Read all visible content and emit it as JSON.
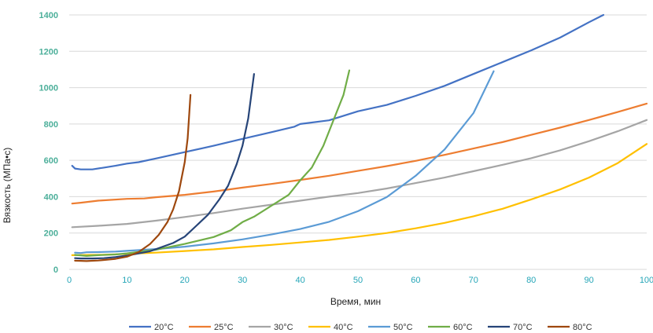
{
  "chart_data": {
    "type": "line",
    "title": "",
    "xlabel": "Время, мин",
    "ylabel": "Вязкость (МПа•с)",
    "xlim": [
      0,
      100
    ],
    "ylim": [
      0,
      1400
    ],
    "xticks": [
      0,
      10,
      20,
      30,
      40,
      50,
      60,
      70,
      80,
      90,
      100
    ],
    "yticks": [
      0,
      200,
      400,
      600,
      800,
      1000,
      1200,
      1400
    ],
    "grid": "horizontal",
    "legend_position": "bottom",
    "series": [
      {
        "name": "20°C",
        "color": "#4472c4",
        "points": [
          [
            0.5,
            570
          ],
          [
            1,
            555
          ],
          [
            2,
            550
          ],
          [
            4,
            550
          ],
          [
            6,
            560
          ],
          [
            8,
            570
          ],
          [
            10,
            582
          ],
          [
            12,
            590
          ],
          [
            15,
            610
          ],
          [
            20,
            645
          ],
          [
            25,
            680
          ],
          [
            30,
            718
          ],
          [
            35,
            755
          ],
          [
            39,
            785
          ],
          [
            40,
            800
          ],
          [
            45,
            820
          ],
          [
            50,
            870
          ],
          [
            55,
            905
          ],
          [
            60,
            955
          ],
          [
            65,
            1010
          ],
          [
            70,
            1075
          ],
          [
            75,
            1140
          ],
          [
            80,
            1205
          ],
          [
            85,
            1275
          ],
          [
            90,
            1360
          ],
          [
            92.5,
            1400
          ]
        ]
      },
      {
        "name": "25°C",
        "color": "#ed7d31",
        "points": [
          [
            0.5,
            362
          ],
          [
            2,
            367
          ],
          [
            5,
            378
          ],
          [
            10,
            388
          ],
          [
            13,
            390
          ],
          [
            15,
            397
          ],
          [
            20,
            410
          ],
          [
            25,
            428
          ],
          [
            30,
            450
          ],
          [
            35,
            470
          ],
          [
            40,
            492
          ],
          [
            45,
            515
          ],
          [
            50,
            542
          ],
          [
            55,
            568
          ],
          [
            60,
            597
          ],
          [
            65,
            630
          ],
          [
            70,
            665
          ],
          [
            75,
            700
          ],
          [
            80,
            740
          ],
          [
            85,
            780
          ],
          [
            90,
            822
          ],
          [
            95,
            866
          ],
          [
            100,
            912
          ]
        ]
      },
      {
        "name": "30°C",
        "color": "#a5a5a5",
        "points": [
          [
            0.5,
            232
          ],
          [
            5,
            240
          ],
          [
            10,
            250
          ],
          [
            15,
            268
          ],
          [
            20,
            288
          ],
          [
            25,
            310
          ],
          [
            30,
            334
          ],
          [
            35,
            356
          ],
          [
            40,
            378
          ],
          [
            45,
            400
          ],
          [
            50,
            420
          ],
          [
            55,
            445
          ],
          [
            60,
            475
          ],
          [
            65,
            505
          ],
          [
            70,
            540
          ],
          [
            75,
            575
          ],
          [
            80,
            612
          ],
          [
            85,
            655
          ],
          [
            90,
            705
          ],
          [
            95,
            760
          ],
          [
            100,
            822
          ]
        ]
      },
      {
        "name": "40°C",
        "color": "#ffc000",
        "points": [
          [
            0.5,
            78
          ],
          [
            5,
            80
          ],
          [
            10,
            85
          ],
          [
            15,
            92
          ],
          [
            20,
            101
          ],
          [
            25,
            110
          ],
          [
            30,
            123
          ],
          [
            35,
            135
          ],
          [
            40,
            148
          ],
          [
            45,
            162
          ],
          [
            50,
            180
          ],
          [
            55,
            200
          ],
          [
            60,
            226
          ],
          [
            65,
            256
          ],
          [
            70,
            292
          ],
          [
            75,
            333
          ],
          [
            80,
            385
          ],
          [
            85,
            440
          ],
          [
            90,
            505
          ],
          [
            95,
            585
          ],
          [
            100,
            690
          ]
        ]
      },
      {
        "name": "50°C",
        "color": "#5b9bd5",
        "points": [
          [
            1,
            92
          ],
          [
            2,
            90
          ],
          [
            3,
            94
          ],
          [
            5,
            95
          ],
          [
            8,
            98
          ],
          [
            10,
            102
          ],
          [
            15,
            112
          ],
          [
            20,
            125
          ],
          [
            25,
            143
          ],
          [
            30,
            165
          ],
          [
            35,
            192
          ],
          [
            40,
            222
          ],
          [
            45,
            262
          ],
          [
            50,
            320
          ],
          [
            55,
            398
          ],
          [
            60,
            515
          ],
          [
            65,
            660
          ],
          [
            70,
            860
          ],
          [
            73.5,
            1090
          ]
        ]
      },
      {
        "name": "60°C",
        "color": "#70ad47",
        "points": [
          [
            1,
            80
          ],
          [
            3,
            74
          ],
          [
            5,
            78
          ],
          [
            8,
            82
          ],
          [
            10,
            88
          ],
          [
            15,
            108
          ],
          [
            20,
            140
          ],
          [
            25,
            178
          ],
          [
            28,
            215
          ],
          [
            30,
            260
          ],
          [
            32,
            290
          ],
          [
            35,
            350
          ],
          [
            38,
            410
          ],
          [
            40,
            490
          ],
          [
            42,
            560
          ],
          [
            44,
            680
          ],
          [
            46,
            840
          ],
          [
            47.5,
            960
          ],
          [
            48.5,
            1095
          ]
        ]
      },
      {
        "name": "70°C",
        "color": "#264478",
        "points": [
          [
            1,
            62
          ],
          [
            2,
            60
          ],
          [
            4,
            60
          ],
          [
            6,
            62
          ],
          [
            8,
            68
          ],
          [
            10,
            76
          ],
          [
            14,
            100
          ],
          [
            18,
            145
          ],
          [
            20,
            180
          ],
          [
            22,
            240
          ],
          [
            24,
            300
          ],
          [
            26,
            385
          ],
          [
            27.5,
            460
          ],
          [
            29,
            580
          ],
          [
            30,
            680
          ],
          [
            31,
            830
          ],
          [
            32,
            1075
          ]
        ]
      },
      {
        "name": "80°C",
        "color": "#9e480e",
        "points": [
          [
            1,
            48
          ],
          [
            3,
            46
          ],
          [
            5,
            49
          ],
          [
            8,
            58
          ],
          [
            10,
            70
          ],
          [
            12,
            95
          ],
          [
            14,
            140
          ],
          [
            15.5,
            190
          ],
          [
            17,
            260
          ],
          [
            18,
            330
          ],
          [
            19,
            430
          ],
          [
            20,
            590
          ],
          [
            20.5,
            720
          ],
          [
            21,
            960
          ]
        ]
      }
    ]
  }
}
